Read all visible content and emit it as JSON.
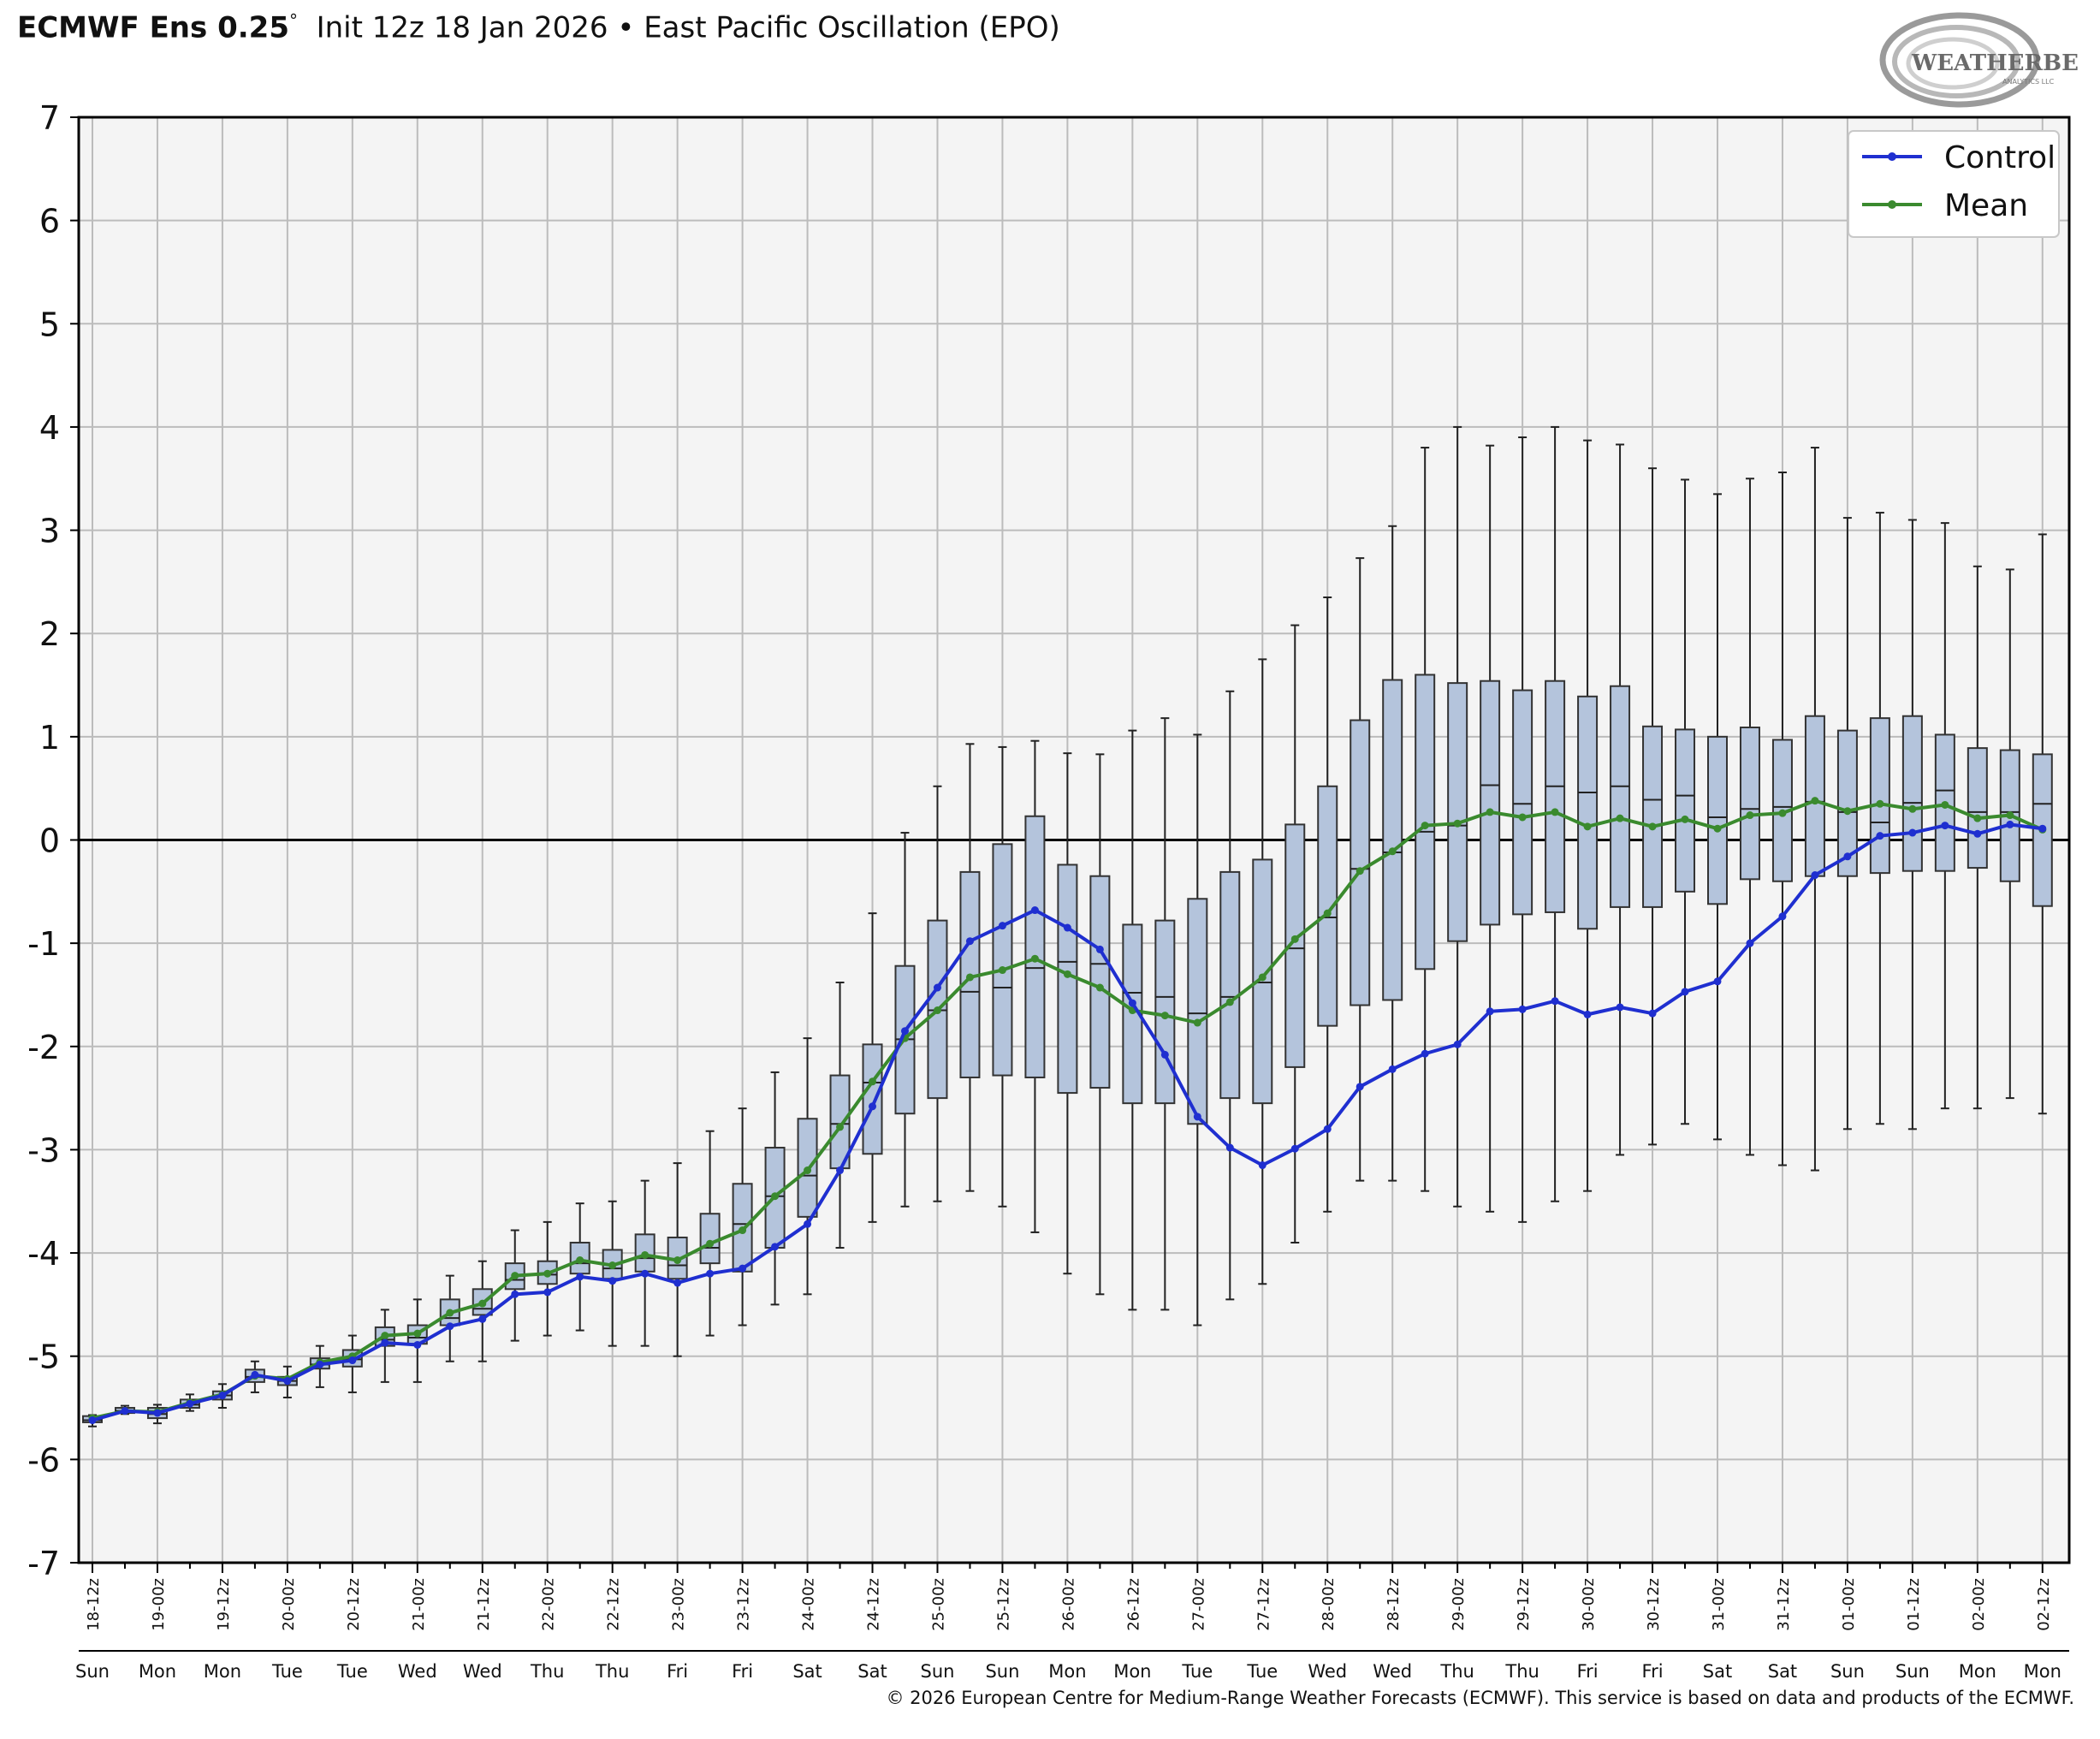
{
  "header": {
    "model": "ECMWF Ens 0.25",
    "degree": "°",
    "init": "Init 12z 18 Jan 2026",
    "separator": "•",
    "index_name": "East Pacific Oscillation (EPO)"
  },
  "logo": {
    "text": "WEATHERBELL",
    "subtext": "ANALYTICS LLC"
  },
  "footer": {
    "copyright": "© 2026 European Centre for Medium-Range Weather Forecasts (ECMWF). This service is based on data and products of the ECMWF."
  },
  "colors": {
    "control": "#1f2fd0",
    "mean": "#3a8a2e",
    "box_fill": "#b4c4dc",
    "plot_bg": "#f4f4f4",
    "grid": "#bcbcbc"
  },
  "chart_data": {
    "type": "box",
    "ylim": [
      -7,
      7
    ],
    "yticks": [
      7,
      6,
      5,
      4,
      3,
      2,
      1,
      0,
      -1,
      -2,
      -3,
      -4,
      -5,
      -6,
      -7
    ],
    "grid": true,
    "legend_position": "top-right",
    "x_top_labels": [
      "18-12z",
      "",
      "19-00z",
      "",
      "19-12z",
      "",
      "20-00z",
      "",
      "20-12z",
      "",
      "21-00z",
      "",
      "21-12z",
      "",
      "22-00z",
      "",
      "22-12z",
      "",
      "23-00z",
      "",
      "23-12z",
      "",
      "24-00z",
      "",
      "24-12z",
      "",
      "25-00z",
      "",
      "25-12z",
      "",
      "26-00z",
      "",
      "26-12z",
      "",
      "27-00z",
      "",
      "27-12z",
      "",
      "28-00z",
      "",
      "28-12z",
      "",
      "29-00z",
      "",
      "29-12z",
      "",
      "30-00z",
      "",
      "30-12z",
      "",
      "31-00z",
      "",
      "31-12z",
      "",
      "01-00z",
      "",
      "01-12z",
      "",
      "02-00z",
      "",
      "02-12z"
    ],
    "x_day_labels": [
      "Sun",
      "",
      "Mon",
      "",
      "Mon",
      "",
      "Tue",
      "",
      "Tue",
      "",
      "Wed",
      "",
      "Wed",
      "",
      "Thu",
      "",
      "Thu",
      "",
      "Fri",
      "",
      "Fri",
      "",
      "Sat",
      "",
      "Sat",
      "",
      "Sun",
      "",
      "Sun",
      "",
      "Mon",
      "",
      "Mon",
      "",
      "Tue",
      "",
      "Tue",
      "",
      "Wed",
      "",
      "Wed",
      "",
      "Thu",
      "",
      "Thu",
      "",
      "Fri",
      "",
      "Fri",
      "",
      "Sat",
      "",
      "Sat",
      "",
      "Sun",
      "",
      "Sun",
      "",
      "Mon",
      "",
      "Mon"
    ],
    "series": [
      {
        "name": "Control",
        "values": [
          -5.62,
          -5.53,
          -5.55,
          -5.46,
          -5.38,
          -5.18,
          -5.24,
          -5.08,
          -5.04,
          -4.87,
          -4.89,
          -4.71,
          -4.64,
          -4.4,
          -4.38,
          -4.23,
          -4.27,
          -4.2,
          -4.29,
          -4.2,
          -4.15,
          -3.94,
          -3.72,
          -3.2,
          -2.58,
          -1.85,
          -1.43,
          -0.98,
          -0.83,
          -0.68,
          -0.85,
          -1.06,
          -1.58,
          -2.08,
          -2.68,
          -2.98,
          -3.15,
          -2.99,
          -2.8,
          -2.39,
          -2.22,
          -2.07,
          -1.98,
          -1.66,
          -1.64,
          -1.56,
          -1.69,
          -1.62,
          -1.68,
          -1.47,
          -1.37,
          -1.0,
          -0.74,
          -0.34,
          -0.16,
          0.04,
          0.07,
          0.14,
          0.06,
          0.15,
          0.11
        ]
      },
      {
        "name": "Mean",
        "values": [
          -5.6,
          -5.53,
          -5.54,
          -5.45,
          -5.37,
          -5.19,
          -5.22,
          -5.06,
          -5.0,
          -4.8,
          -4.78,
          -4.58,
          -4.49,
          -4.22,
          -4.2,
          -4.07,
          -4.12,
          -4.02,
          -4.07,
          -3.91,
          -3.78,
          -3.45,
          -3.2,
          -2.78,
          -2.34,
          -1.92,
          -1.65,
          -1.33,
          -1.26,
          -1.15,
          -1.3,
          -1.43,
          -1.65,
          -1.7,
          -1.77,
          -1.57,
          -1.33,
          -0.96,
          -0.71,
          -0.3,
          -0.11,
          0.14,
          0.16,
          0.27,
          0.22,
          0.27,
          0.13,
          0.21,
          0.13,
          0.2,
          0.11,
          0.24,
          0.26,
          0.38,
          0.28,
          0.35,
          0.3,
          0.34,
          0.21,
          0.24,
          0.1
        ]
      }
    ],
    "ensemble_boxes": {
      "whisker_min": [
        -5.68,
        -5.56,
        -5.65,
        -5.53,
        -5.5,
        -5.35,
        -5.4,
        -5.3,
        -5.35,
        -5.25,
        -5.25,
        -5.05,
        -5.05,
        -4.85,
        -4.8,
        -4.75,
        -4.9,
        -4.9,
        -5.0,
        -4.8,
        -4.7,
        -4.5,
        -4.4,
        -3.95,
        -3.7,
        -3.55,
        -3.5,
        -3.4,
        -3.55,
        -3.8,
        -4.2,
        -4.4,
        -4.55,
        -4.55,
        -4.7,
        -4.45,
        -4.3,
        -3.9,
        -3.6,
        -3.3,
        -3.3,
        -3.4,
        -3.55,
        -3.6,
        -3.7,
        -3.5,
        -3.4,
        -3.05,
        -2.95,
        -2.75,
        -2.9,
        -3.05,
        -3.15,
        -3.2,
        -2.8,
        -2.75,
        -2.8,
        -2.6,
        -2.6,
        -2.5,
        -2.65
      ],
      "q1": [
        -5.64,
        -5.55,
        -5.6,
        -5.5,
        -5.42,
        -5.25,
        -5.28,
        -5.12,
        -5.1,
        -4.9,
        -4.88,
        -4.7,
        -4.6,
        -4.35,
        -4.3,
        -4.2,
        -4.25,
        -4.18,
        -4.25,
        -4.1,
        -4.18,
        -3.95,
        -3.65,
        -3.18,
        -3.04,
        -2.65,
        -2.5,
        -2.3,
        -2.28,
        -2.3,
        -2.45,
        -2.4,
        -2.55,
        -2.55,
        -2.75,
        -2.5,
        -2.55,
        -2.2,
        -1.8,
        -1.6,
        -1.55,
        -1.25,
        -0.98,
        -0.82,
        -0.72,
        -0.7,
        -0.86,
        -0.65,
        -0.65,
        -0.5,
        -0.62,
        -0.38,
        -0.4,
        -0.35,
        -0.35,
        -0.32,
        -0.3,
        -0.3,
        -0.27,
        -0.4,
        -0.64
      ],
      "median": [
        -5.62,
        -5.53,
        -5.56,
        -5.47,
        -5.38,
        -5.2,
        -5.24,
        -5.08,
        -5.03,
        -4.84,
        -4.82,
        -4.63,
        -4.54,
        -4.26,
        -4.21,
        -4.1,
        -4.15,
        -4.05,
        -4.12,
        -3.95,
        -3.72,
        -3.45,
        -3.25,
        -2.75,
        -2.35,
        -1.93,
        -1.65,
        -1.47,
        -1.43,
        -1.24,
        -1.18,
        -1.2,
        -1.48,
        -1.52,
        -1.68,
        -1.52,
        -1.38,
        -1.05,
        -0.75,
        -0.28,
        -0.12,
        0.08,
        0.14,
        0.53,
        0.35,
        0.52,
        0.46,
        0.52,
        0.39,
        0.43,
        0.22,
        0.3,
        0.32,
        0.37,
        0.27,
        0.17,
        0.36,
        0.48,
        0.27,
        0.27,
        0.35
      ],
      "q3": [
        -5.58,
        -5.5,
        -5.5,
        -5.42,
        -5.34,
        -5.13,
        -5.2,
        -5.02,
        -4.94,
        -4.72,
        -4.7,
        -4.45,
        -4.35,
        -4.1,
        -4.08,
        -3.9,
        -3.97,
        -3.82,
        -3.85,
        -3.62,
        -3.33,
        -2.98,
        -2.7,
        -2.28,
        -1.98,
        -1.22,
        -0.78,
        -0.31,
        -0.04,
        0.23,
        -0.24,
        -0.35,
        -0.82,
        -0.78,
        -0.57,
        -0.31,
        -0.19,
        0.15,
        0.52,
        1.16,
        1.55,
        1.6,
        1.52,
        1.54,
        1.45,
        1.54,
        1.39,
        1.49,
        1.1,
        1.07,
        1.0,
        1.09,
        0.97,
        1.2,
        1.06,
        1.18,
        1.2,
        1.02,
        0.89,
        0.87,
        0.83
      ],
      "whisker_max": [
        -5.57,
        -5.48,
        -5.47,
        -5.37,
        -5.27,
        -5.05,
        -5.1,
        -4.9,
        -4.8,
        -4.55,
        -4.45,
        -4.22,
        -4.08,
        -3.78,
        -3.7,
        -3.52,
        -3.5,
        -3.3,
        -3.13,
        -2.82,
        -2.6,
        -2.25,
        -1.92,
        -1.38,
        -0.71,
        0.07,
        0.52,
        0.93,
        0.9,
        0.96,
        0.84,
        0.83,
        1.06,
        1.18,
        1.02,
        1.44,
        1.75,
        2.08,
        2.35,
        2.73,
        3.04,
        3.8,
        4.0,
        3.82,
        3.9,
        4.0,
        3.87,
        3.83,
        3.6,
        3.49,
        3.35,
        3.5,
        3.56,
        3.8,
        3.12,
        3.17,
        3.1,
        3.07,
        2.65,
        2.62,
        2.96
      ]
    }
  }
}
